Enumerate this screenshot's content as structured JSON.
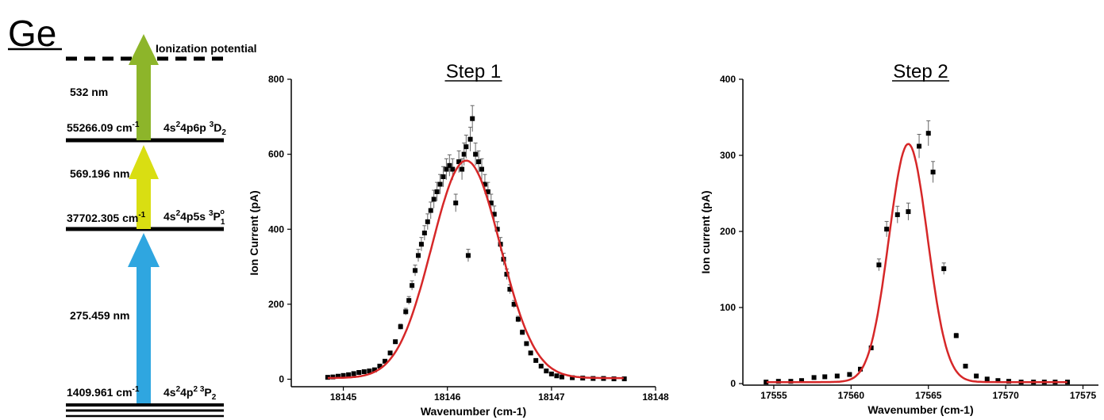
{
  "level_diagram": {
    "element": "Ge",
    "ionization_label": "Ionization potential",
    "steps": [
      {
        "wavelength": "532 nm",
        "color": "#8db52a"
      },
      {
        "wavelength": "569.196 nm",
        "color": "#d9de12"
      },
      {
        "wavelength": "275.459 nm",
        "color": "#2fa6e0"
      }
    ],
    "levels": [
      {
        "energy_text": "55266.09 cm",
        "config_text": "4s",
        "term": "D",
        "j": "2"
      },
      {
        "energy_text": "37702.305 cm",
        "config_text": "4s",
        "term": "P",
        "j": "1"
      },
      {
        "energy_text": "1409.961 cm",
        "config_text": "4s",
        "term": "P",
        "j": "2"
      }
    ]
  },
  "chart_data": [
    {
      "type": "scatter",
      "title": "Step 1",
      "xlabel": "Wavenumber (cm-1)",
      "ylabel": "Ion Current (pA)",
      "xlim": [
        18144.5,
        18148
      ],
      "ylim": [
        -20,
        800
      ],
      "xticks": [
        18145,
        18146,
        18147,
        18148
      ],
      "yticks": [
        0,
        200,
        400,
        600,
        800
      ],
      "series": [
        {
          "kind": "points",
          "color": "#000000",
          "x": [
            18144.85,
            18144.9,
            18144.95,
            18145.0,
            18145.05,
            18145.1,
            18145.15,
            18145.2,
            18145.25,
            18145.3,
            18145.35,
            18145.4,
            18145.45,
            18145.5,
            18145.55,
            18145.6,
            18145.63,
            18145.66,
            18145.69,
            18145.72,
            18145.75,
            18145.78,
            18145.81,
            18145.84,
            18145.87,
            18145.9,
            18145.93,
            18145.96,
            18145.99,
            18146.02,
            18146.05,
            18146.08,
            18146.11,
            18146.14,
            18146.16,
            18146.18,
            18146.2,
            18146.22,
            18146.24,
            18146.27,
            18146.3,
            18146.33,
            18146.36,
            18146.39,
            18146.42,
            18146.45,
            18146.48,
            18146.51,
            18146.54,
            18146.57,
            18146.6,
            18146.64,
            18146.68,
            18146.72,
            18146.76,
            18146.8,
            18146.85,
            18146.9,
            18146.95,
            18147.0,
            18147.05,
            18147.1,
            18147.2,
            18147.3,
            18147.4,
            18147.5,
            18147.6,
            18147.7
          ],
          "y": [
            5,
            6,
            8,
            10,
            12,
            15,
            18,
            20,
            22,
            25,
            35,
            48,
            70,
            100,
            140,
            180,
            210,
            250,
            290,
            330,
            360,
            390,
            420,
            450,
            480,
            500,
            520,
            540,
            560,
            570,
            560,
            470,
            580,
            560,
            600,
            620,
            330,
            640,
            695,
            600,
            580,
            560,
            520,
            500,
            470,
            440,
            400,
            360,
            320,
            280,
            240,
            200,
            160,
            125,
            95,
            70,
            50,
            35,
            22,
            14,
            9,
            6,
            4,
            3,
            2,
            2,
            1,
            1
          ]
        }
      ],
      "fit": {
        "kind": "gaussian",
        "color": "#d62728",
        "center": 18146.18,
        "sigma": 0.33,
        "amplitude": 580,
        "offset": 3
      }
    },
    {
      "type": "scatter",
      "title": "Step 2",
      "xlabel": "Wavenumber (cm-1)",
      "ylabel": "Ion current (pA)",
      "xlim": [
        17553,
        17576
      ],
      "ylim": [
        -2,
        400
      ],
      "xticks": [
        17555,
        17560,
        17565,
        17570,
        17575
      ],
      "yticks": [
        0,
        100,
        200,
        300,
        400
      ],
      "series": [
        {
          "kind": "points",
          "color": "#000000",
          "x": [
            17554.5,
            17555.3,
            17556.1,
            17556.8,
            17557.6,
            17558.3,
            17559.1,
            17559.9,
            17560.6,
            17561.3,
            17561.8,
            17562.3,
            17563.0,
            17563.7,
            17564.4,
            17565.0,
            17565.3,
            17566.0,
            17566.8,
            17567.4,
            17568.1,
            17568.8,
            17569.5,
            17570.2,
            17571.0,
            17571.8,
            17572.5,
            17573.2,
            17574.0
          ],
          "y": [
            2,
            3,
            3,
            4,
            8,
            9,
            10,
            12,
            19,
            47,
            156,
            203,
            222,
            226,
            312,
            329,
            278,
            151,
            63,
            23,
            10,
            6,
            4,
            3,
            2,
            2,
            2,
            2,
            2
          ]
        }
      ],
      "fit": {
        "kind": "gaussian",
        "color": "#d62728",
        "center": 17563.7,
        "sigma": 1.25,
        "amplitude": 313,
        "offset": 2
      }
    }
  ]
}
